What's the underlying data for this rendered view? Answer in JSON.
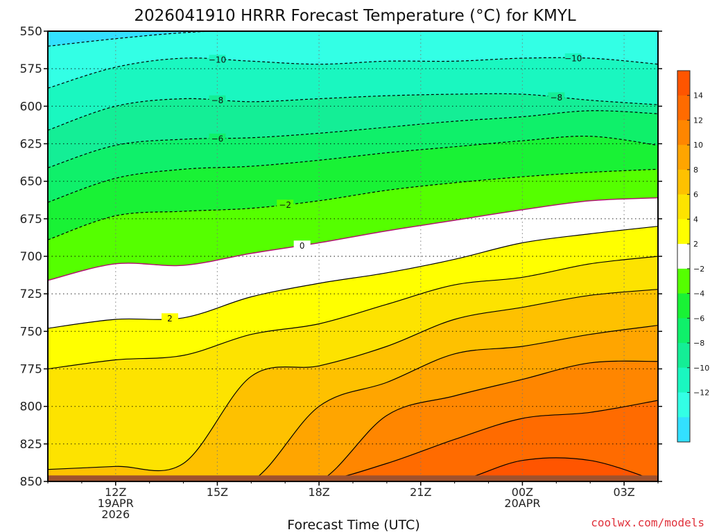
{
  "chart_data": {
    "type": "contour",
    "title": "2026041910 HRRR Forecast Temperature (°C) for KMYL",
    "xlabel": "Forecast Time (UTC)",
    "ylabel": "",
    "credit": "coolwx.com/models",
    "x_start_hour": 10,
    "x_end_hour": 28,
    "xlim_hours": [
      0,
      18
    ],
    "x_ticks": [
      {
        "offset_h": 2,
        "lines": [
          "12Z",
          "19APR",
          "2026"
        ]
      },
      {
        "offset_h": 5,
        "lines": [
          "15Z"
        ]
      },
      {
        "offset_h": 8,
        "lines": [
          "18Z"
        ]
      },
      {
        "offset_h": 11,
        "lines": [
          "21Z"
        ]
      },
      {
        "offset_h": 14,
        "lines": [
          "00Z",
          "20APR"
        ]
      },
      {
        "offset_h": 17,
        "lines": [
          "03Z"
        ]
      }
    ],
    "y_axis": {
      "unit": "hPa",
      "inverted": true,
      "ylim": [
        550,
        850
      ],
      "ticks": [
        550,
        575,
        600,
        625,
        650,
        675,
        700,
        725,
        750,
        775,
        800,
        825,
        850
      ]
    },
    "grid": true,
    "ground_surface_hpa": 846,
    "colorbar": {
      "position": "right",
      "levels": [
        -14,
        -12,
        -10,
        -8,
        -6,
        -4,
        -2,
        2,
        4,
        6,
        8,
        10,
        12,
        14,
        16
      ],
      "labels": [
        "14",
        "12",
        "10",
        "8",
        "6",
        "4",
        "2",
        "−2",
        "−4",
        "−6",
        "−8",
        "−10",
        "−12"
      ],
      "colors": [
        "#33e0ff",
        "#33ffe5",
        "#1af7c0",
        "#14ee96",
        "#0ff06a",
        "#19f235",
        "#55ff00",
        "#ffffff",
        "#ffff00",
        "#fde300",
        "#fec100",
        "#ffa500",
        "#ff8600",
        "#ff6b00",
        "#ff5500"
      ]
    },
    "time_hours": [
      0,
      2,
      4,
      6,
      8,
      10,
      12,
      14,
      16,
      18
    ],
    "contours": [
      {
        "value": -12,
        "pressures": [
          560,
          555,
          551,
          549,
          548,
          548,
          548,
          548,
          549,
          550
        ],
        "label": ""
      },
      {
        "value": -10,
        "pressures": [
          588,
          574,
          568,
          570,
          572,
          570,
          570,
          568,
          568,
          572
        ],
        "label": "−10"
      },
      {
        "value": -8,
        "pressures": [
          616,
          600,
          595,
          597,
          595,
          593,
          592,
          592,
          596,
          599
        ],
        "label": "−8"
      },
      {
        "value": -6,
        "pressures": [
          641,
          626,
          622,
          621,
          618,
          614,
          610,
          607,
          603,
          605
        ],
        "label": "−6"
      },
      {
        "value": -4,
        "pressures": [
          664,
          648,
          642,
          640,
          636,
          631,
          627,
          623,
          620,
          626
        ],
        "label": ""
      },
      {
        "value": -2,
        "pressures": [
          689,
          673,
          670,
          668,
          663,
          656,
          651,
          647,
          644,
          642
        ],
        "label": "−2"
      },
      {
        "value": 0,
        "pressures": [
          716,
          705,
          706,
          698,
          691,
          683,
          676,
          669,
          663,
          661
        ],
        "label": "0"
      },
      {
        "value": 2,
        "pressures": [
          748,
          742,
          741,
          727,
          718,
          711,
          702,
          691,
          685,
          680
        ],
        "label": "2"
      },
      {
        "value": 4,
        "pressures": [
          775,
          769,
          766,
          752,
          745,
          732,
          719,
          714,
          705,
          700
        ],
        "label": ""
      },
      {
        "value": 6,
        "pressures": [
          842,
          840,
          838,
          780,
          773,
          760,
          742,
          734,
          726,
          722
        ],
        "label": ""
      },
      {
        "value": 8,
        "pressures": [
          850,
          850,
          850,
          850,
          800,
          784,
          765,
          760,
          752,
          746
        ],
        "label": ""
      },
      {
        "value": 10,
        "pressures": [
          850,
          850,
          850,
          850,
          850,
          806,
          793,
          782,
          771,
          770
        ],
        "label": ""
      },
      {
        "value": 12,
        "pressures": [
          850,
          850,
          850,
          850,
          850,
          838,
          822,
          808,
          804,
          796
        ],
        "label": ""
      },
      {
        "value": 14,
        "pressures": [
          850,
          850,
          850,
          850,
          850,
          850,
          850,
          836,
          836,
          850
        ],
        "label": ""
      }
    ]
  }
}
